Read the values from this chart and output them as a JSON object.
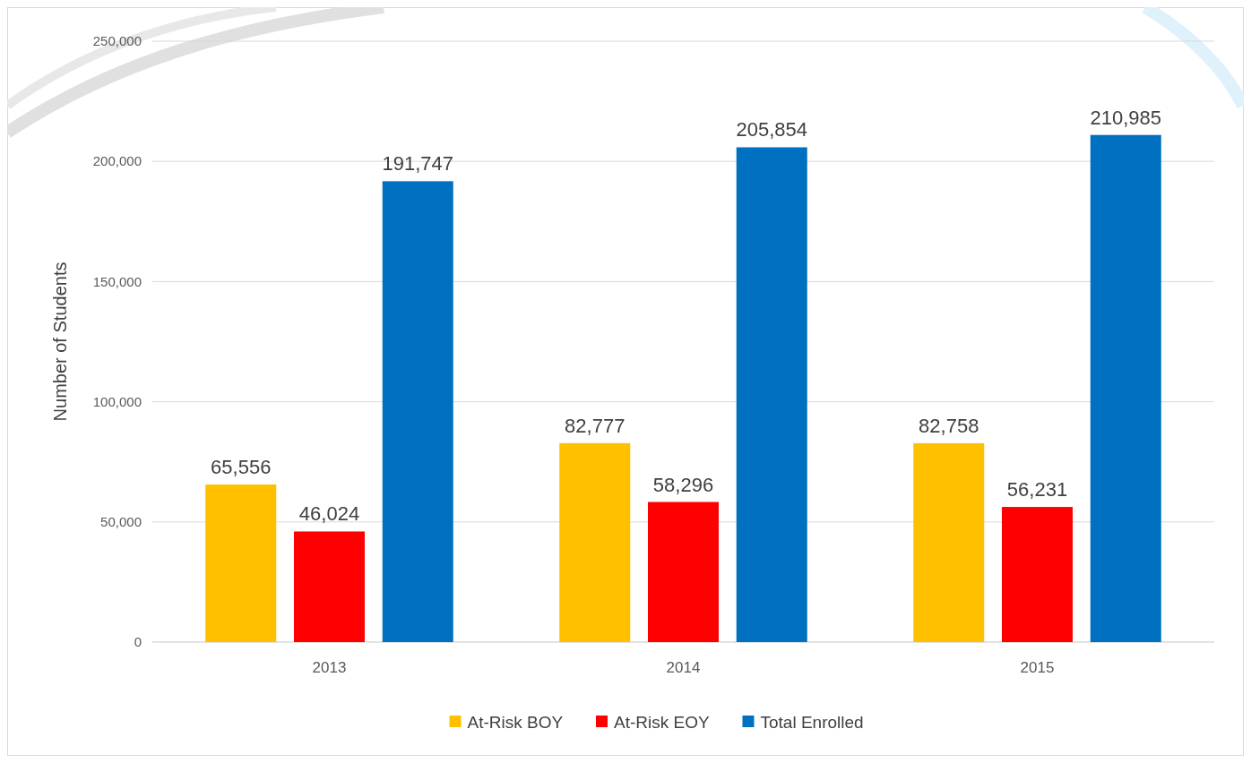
{
  "chart_data": {
    "type": "bar",
    "ylabel": "Number of Students",
    "categories": [
      "2013",
      "2014",
      "2015"
    ],
    "series": [
      {
        "name": "At-Risk BOY",
        "color": "#ffc000",
        "values": [
          65556,
          82777,
          82758
        ],
        "value_labels": [
          "65,556",
          "82,777",
          "82,758"
        ]
      },
      {
        "name": "At-Risk EOY",
        "color": "#ff0000",
        "values": [
          46024,
          58296,
          56231
        ],
        "value_labels": [
          "46,024",
          "58,296",
          "56,231"
        ]
      },
      {
        "name": "Total Enrolled",
        "color": "#0070c0",
        "values": [
          191747,
          205854,
          210985
        ],
        "value_labels": [
          "191,747",
          "205,854",
          "210,985"
        ]
      }
    ],
    "ylim": [
      0,
      250000
    ],
    "yticks": [
      0,
      {
        "value": 50000,
        "label": "50,000"
      },
      {
        "value": 100000,
        "label": "100,000"
      },
      {
        "value": 150000,
        "label": "150,000"
      },
      {
        "value": 200000,
        "label": "200,000"
      },
      {
        "value": 250000,
        "label": "250,000"
      }
    ],
    "grid": "y",
    "legend": "bottom"
  }
}
